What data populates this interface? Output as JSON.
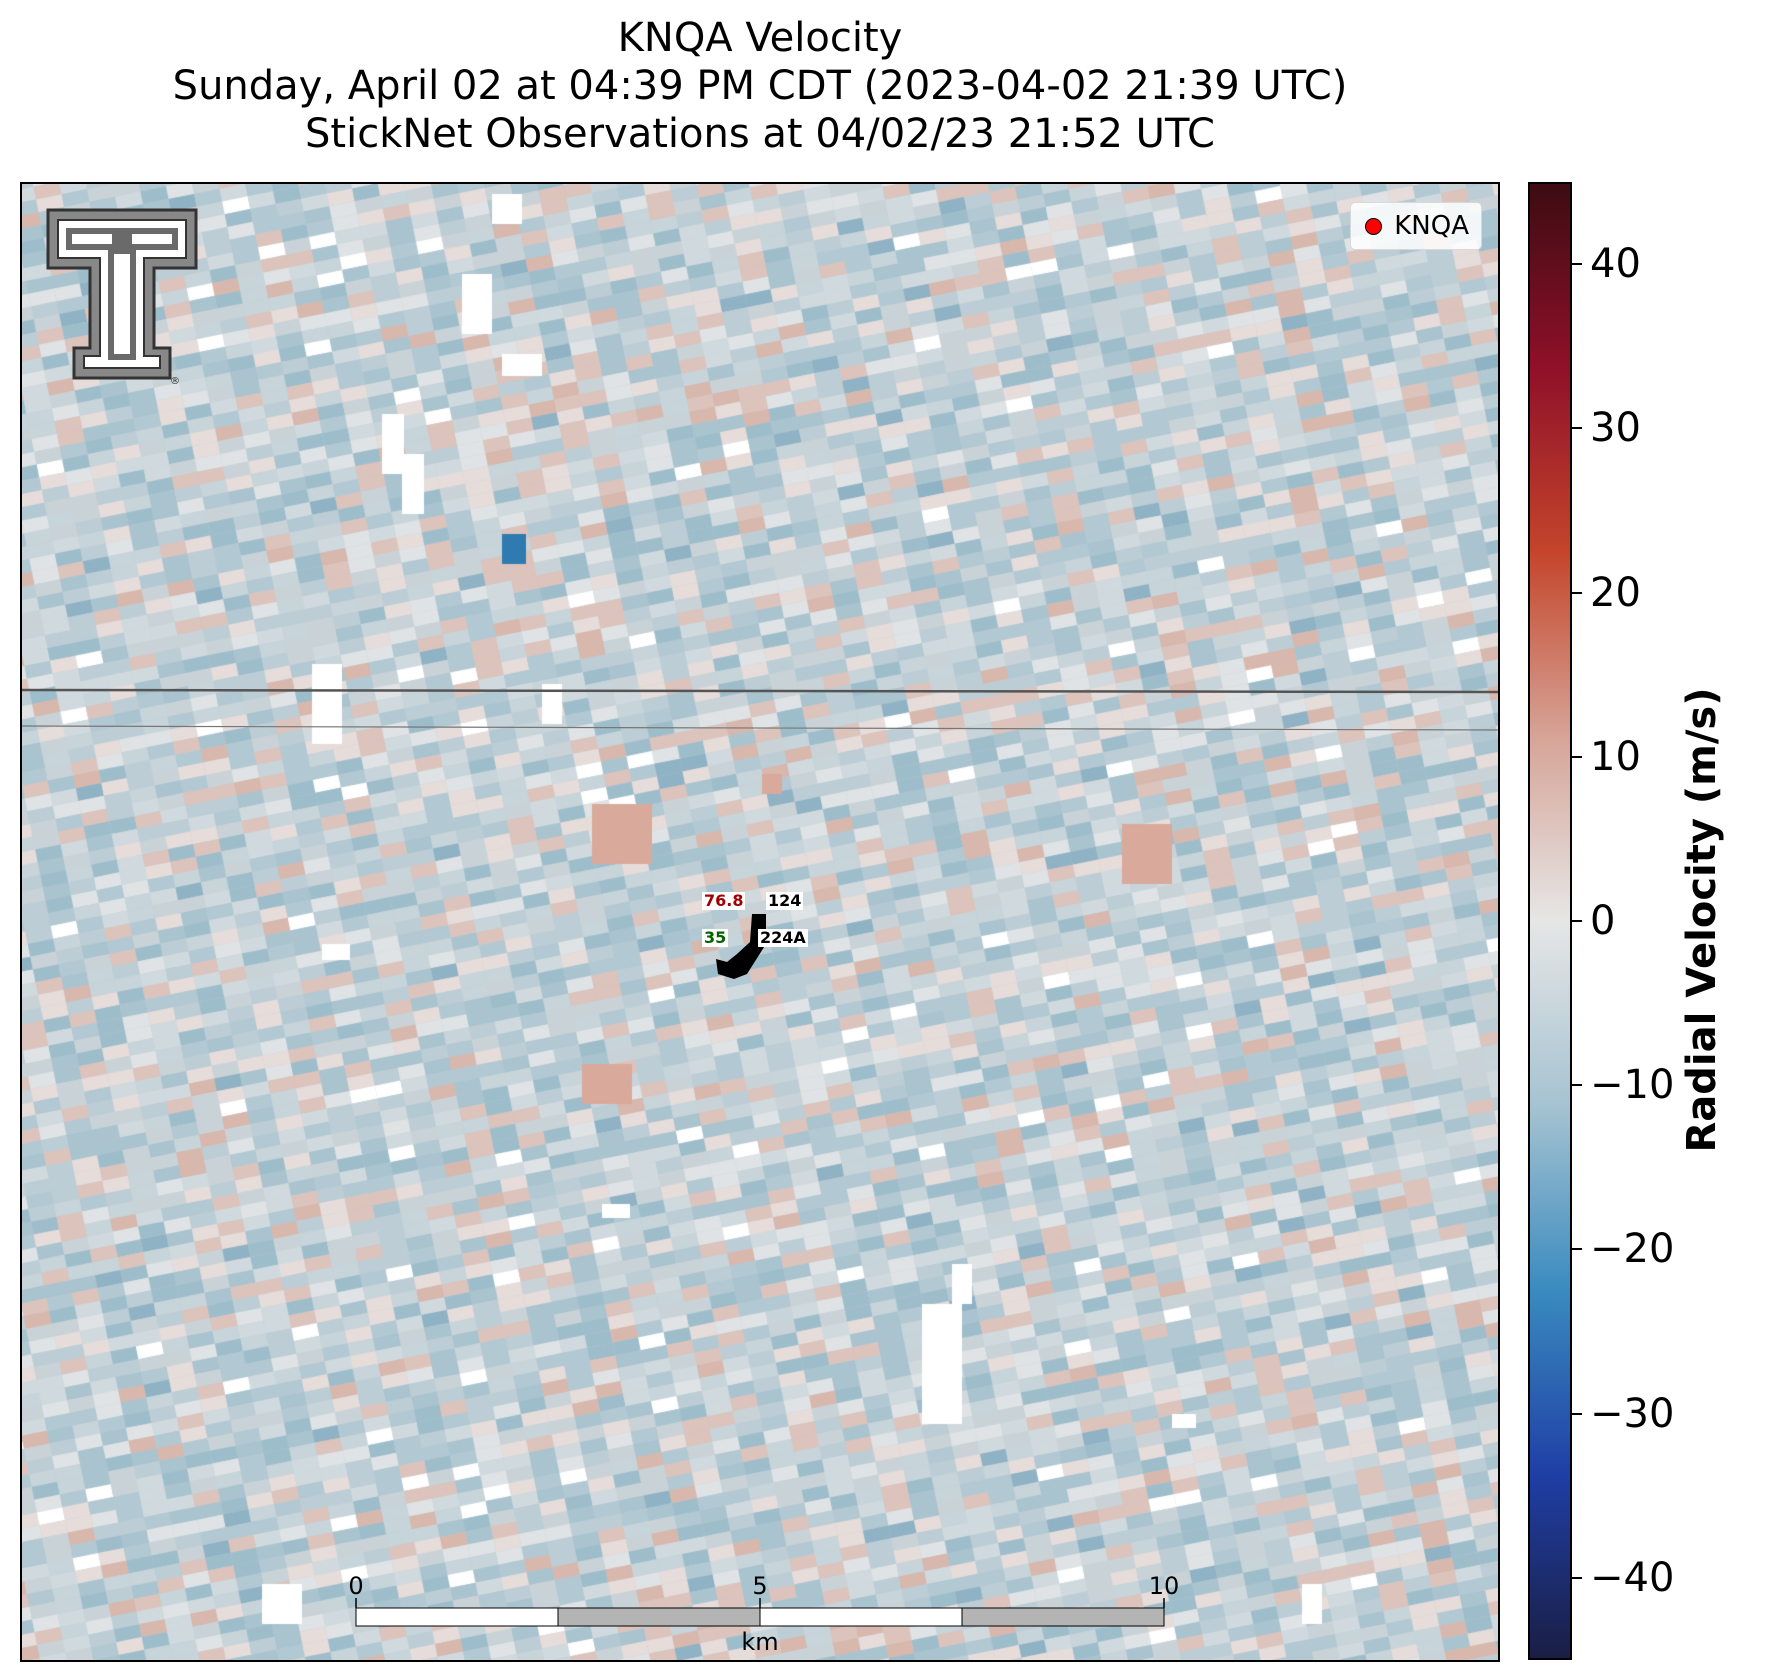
{
  "title": {
    "line1": "KNQA Velocity",
    "line2": "Sunday, April 02 at 04:39 PM CDT (2023-04-02 21:39 UTC)",
    "line3": "StickNet Observations at 04/02/23 21:52 UTC"
  },
  "legend": {
    "label": "KNQA",
    "marker_color": "#ff0000"
  },
  "stations": [
    {
      "id": "124",
      "value": "76.8",
      "value_color": "#a00000"
    },
    {
      "id": "224A",
      "value": "35",
      "value_color": "#006400"
    }
  ],
  "scale_bar": {
    "labels": [
      "0",
      "5",
      "10"
    ],
    "unit": "km"
  },
  "colorbar": {
    "label": "Radial Velocity (m/s)",
    "min": -45,
    "max": 45,
    "ticks": [
      "40",
      "30",
      "20",
      "10",
      "0",
      "−10",
      "−20",
      "−30",
      "−40"
    ],
    "tick_values": [
      40,
      30,
      20,
      10,
      0,
      -10,
      -20,
      -30,
      -40
    ],
    "colormap": [
      "#1a1e44",
      "#1f3fa6",
      "#3a8bbf",
      "#a6c3d1",
      "#e6e6e6",
      "#d6a497",
      "#c4452b",
      "#8f1029",
      "#3d0c12"
    ]
  }
}
